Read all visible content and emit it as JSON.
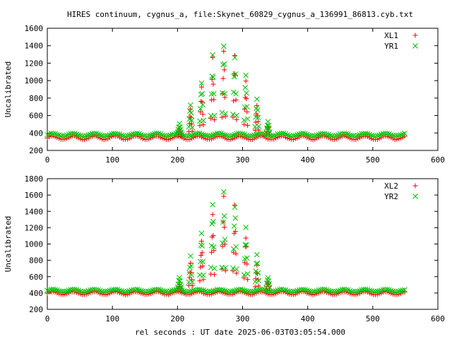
{
  "title": "HIRES continuum, cygnus_a, file:Skynet_60829_cygnus_a_136991_86813.cyb.txt",
  "xlabel": "rel seconds : UT date 2025-06-03T03:05:54.000",
  "chart_data": [
    {
      "type": "scatter",
      "ylabel": "Uncalibrated",
      "xlim": [
        0,
        600
      ],
      "ylim": [
        200,
        1600
      ],
      "xticks": [
        0,
        100,
        200,
        300,
        400,
        500,
        600
      ],
      "yticks": [
        200,
        400,
        600,
        800,
        1000,
        1200,
        1400,
        1600
      ],
      "grid": false,
      "legend_position": "top-right",
      "baseline": {
        "x_range": [
          0,
          550
        ],
        "step": 3,
        "period": 32,
        "XL": {
          "mean": 345,
          "amp": 20
        },
        "YR": {
          "mean": 380,
          "amp": 15
        }
      },
      "scan_x": [
        203,
        220,
        237,
        254,
        271,
        288,
        305,
        322,
        339
      ],
      "series": [
        {
          "name": "XL1",
          "color": "#ff0000",
          "marker": "plus",
          "peaks": [
            430,
            680,
            950,
            1280,
            1400,
            1330,
            1010,
            730,
            500
          ]
        },
        {
          "name": "YR1",
          "color": "#00c000",
          "marker": "cross",
          "peaks": [
            510,
            750,
            1070,
            1390,
            1490,
            1410,
            1110,
            790,
            530
          ]
        }
      ]
    },
    {
      "type": "scatter",
      "ylabel": "Uncalibrated",
      "xlim": [
        0,
        600
      ],
      "ylim": [
        200,
        1800
      ],
      "xticks": [
        0,
        100,
        200,
        300,
        400,
        500,
        600
      ],
      "yticks": [
        200,
        400,
        600,
        800,
        1000,
        1200,
        1400,
        1600,
        1800
      ],
      "grid": false,
      "legend_position": "top-right",
      "baseline": {
        "x_range": [
          0,
          550
        ],
        "step": 3,
        "period": 32,
        "XL": {
          "mean": 398,
          "amp": 18
        },
        "YR": {
          "mean": 430,
          "amp": 14
        }
      },
      "scan_x": [
        203,
        220,
        237,
        254,
        271,
        288,
        305,
        322,
        339
      ],
      "series": [
        {
          "name": "XL2",
          "color": "#ff0000",
          "marker": "plus",
          "peaks": [
            520,
            780,
            1090,
            1470,
            1620,
            1520,
            1180,
            760,
            560
          ]
        },
        {
          "name": "YR2",
          "color": "#00c000",
          "marker": "cross",
          "peaks": [
            600,
            870,
            1230,
            1590,
            1700,
            1620,
            1260,
            920,
            610
          ]
        }
      ]
    }
  ]
}
